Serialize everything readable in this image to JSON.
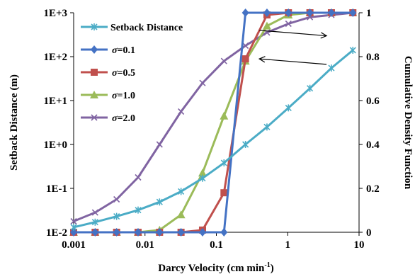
{
  "chart_data": {
    "type": "line",
    "x_axis": {
      "label_main": "Darcy Velocity (cm min",
      "label_sup": "-1",
      "label_end": ")",
      "scale": "log",
      "range": [
        0.001,
        10
      ],
      "ticks": [
        0.001,
        0.01,
        0.1,
        1,
        10
      ],
      "tick_labels": [
        "0.001",
        "0.01",
        "0.1",
        "1",
        "10"
      ]
    },
    "y_axis_left": {
      "label": "Setback Distance (m)",
      "scale": "log",
      "range": [
        0.01,
        1000
      ],
      "ticks": [
        0.01,
        0.1,
        1,
        10,
        100,
        1000
      ],
      "tick_labels": [
        "1E-2",
        "1E-1",
        "1E+0",
        "1E+1",
        "1E+2",
        "1E+3"
      ]
    },
    "y_axis_right": {
      "label": "Cumulative Density Function",
      "scale": "linear",
      "range": [
        0,
        1
      ],
      "ticks": [
        0,
        0.2,
        0.4,
        0.6,
        0.8,
        1
      ],
      "tick_labels": [
        "0",
        "0.2",
        "0.4",
        "0.6",
        "0.8",
        "1"
      ]
    },
    "grid": false,
    "legend_position": "top-left",
    "series": [
      {
        "name": "Setback Distance",
        "axis": "left",
        "color": "#4bacc6",
        "marker": "asterisk",
        "x": [
          0.001,
          0.002,
          0.004,
          0.008,
          0.016,
          0.032,
          0.064,
          0.128,
          0.256,
          0.512,
          1.024,
          2.048,
          4.096,
          8.192
        ],
        "y": [
          0.013,
          0.017,
          0.023,
          0.032,
          0.049,
          0.085,
          0.17,
          0.38,
          1.0,
          2.5,
          6.8,
          19,
          55,
          140
        ]
      },
      {
        "name": "σ=0.1",
        "name_symbol": "σ",
        "name_value": "=0.1",
        "axis": "right",
        "color": "#4472c4",
        "marker": "diamond",
        "x": [
          0.001,
          0.002,
          0.004,
          0.008,
          0.016,
          0.032,
          0.064,
          0.128,
          0.256,
          0.512,
          1.024,
          2.048,
          4.096,
          8.192
        ],
        "y": [
          0,
          0,
          0,
          0,
          0,
          0,
          0,
          0,
          1,
          1,
          1,
          1,
          1,
          1
        ]
      },
      {
        "name": "σ=0.5",
        "name_symbol": "σ",
        "name_value": "=0.5",
        "axis": "right",
        "color": "#c0504d",
        "marker": "square",
        "x": [
          0.001,
          0.002,
          0.004,
          0.008,
          0.016,
          0.032,
          0.064,
          0.128,
          0.256,
          0.512,
          1.024,
          2.048,
          4.096,
          8.192
        ],
        "y": [
          0,
          0,
          0,
          0,
          0,
          0,
          0.01,
          0.18,
          0.79,
          0.99,
          1,
          1,
          1,
          1
        ]
      },
      {
        "name": "σ=1.0",
        "name_symbol": "σ",
        "name_value": "=1.0",
        "axis": "right",
        "color": "#9bbb59",
        "marker": "triangle",
        "x": [
          0.001,
          0.002,
          0.004,
          0.008,
          0.016,
          0.032,
          0.064,
          0.128,
          0.256,
          0.512,
          1.024,
          2.048,
          4.096,
          8.192
        ],
        "y": [
          0,
          0,
          0,
          0,
          0.01,
          0.08,
          0.27,
          0.53,
          0.78,
          0.94,
          0.99,
          1,
          1,
          1
        ]
      },
      {
        "name": "σ=2.0",
        "name_symbol": "σ",
        "name_value": "=2.0",
        "axis": "right",
        "color": "#8064a2",
        "marker": "x",
        "x": [
          0.001,
          0.002,
          0.004,
          0.008,
          0.016,
          0.032,
          0.064,
          0.128,
          0.256,
          0.512,
          1.024,
          2.048,
          4.096,
          8.192
        ],
        "y": [
          0.05,
          0.09,
          0.15,
          0.25,
          0.4,
          0.55,
          0.68,
          0.78,
          0.85,
          0.91,
          0.95,
          0.98,
          0.99,
          1
        ]
      }
    ],
    "annotations": [
      {
        "type": "arrow",
        "direction": "right",
        "from": [
          0.4,
          0.92
        ],
        "to": [
          3.5,
          0.895
        ]
      },
      {
        "type": "arrow",
        "direction": "left",
        "from": [
          3.5,
          0.765
        ],
        "to": [
          0.4,
          0.79
        ]
      }
    ]
  }
}
